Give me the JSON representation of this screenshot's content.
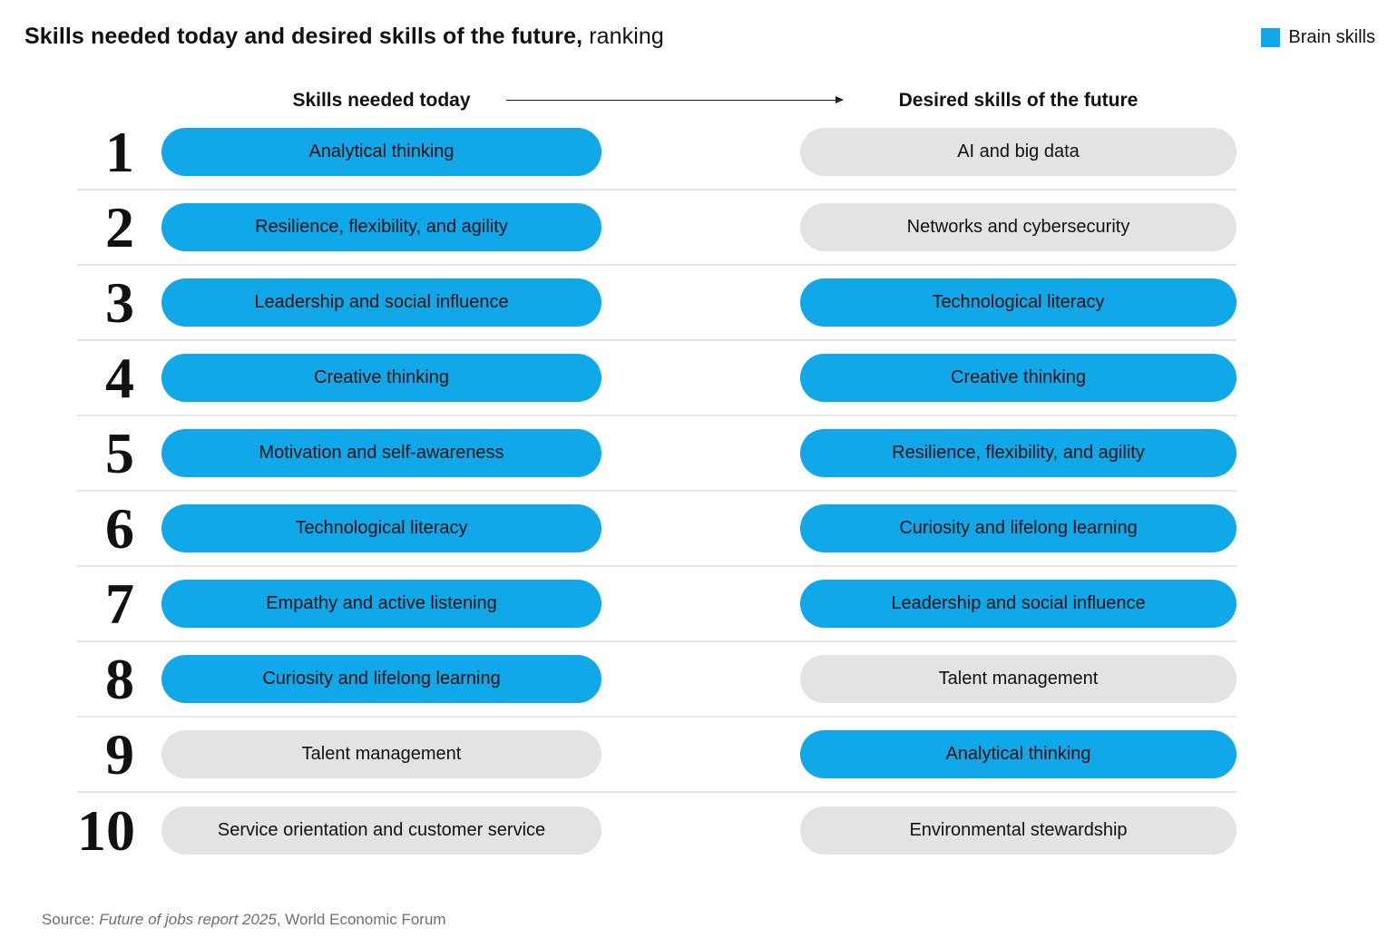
{
  "header": {
    "title_bold": "Skills needed today and desired skills of the future,",
    "title_regular": "ranking",
    "legend": {
      "label": "Brain skills",
      "color": "#10a8e9"
    }
  },
  "column_headers": {
    "left": "Skills needed today",
    "right": "Desired skills of the future"
  },
  "colors": {
    "brain_skill": "#10a8e9",
    "other_skill": "#e3e3e3",
    "divider": "#e6e6e6",
    "source_text": "#6f6f6f"
  },
  "chart_data": {
    "type": "table",
    "title": "Skills needed today and desired skills of the future, ranking",
    "columns": [
      "Rank",
      "Skills needed today",
      "Desired skills of the future"
    ],
    "legend": {
      "label": "Brain skills",
      "color": "#10a8e9",
      "position": "top-right"
    },
    "variant_meaning": {
      "brain": "Brain skill (blue)",
      "other": "Non-brain skill (gray)"
    },
    "rows": [
      {
        "rank": "1",
        "today": {
          "label": "Analytical thinking",
          "variant": "brain"
        },
        "future": {
          "label": "AI and big data",
          "variant": "other"
        }
      },
      {
        "rank": "2",
        "today": {
          "label": "Resilience, flexibility, and agility",
          "variant": "brain"
        },
        "future": {
          "label": "Networks and cybersecurity",
          "variant": "other"
        }
      },
      {
        "rank": "3",
        "today": {
          "label": "Leadership and social influence",
          "variant": "brain"
        },
        "future": {
          "label": "Technological literacy",
          "variant": "brain"
        }
      },
      {
        "rank": "4",
        "today": {
          "label": "Creative thinking",
          "variant": "brain"
        },
        "future": {
          "label": "Creative thinking",
          "variant": "brain"
        }
      },
      {
        "rank": "5",
        "today": {
          "label": "Motivation and self-awareness",
          "variant": "brain"
        },
        "future": {
          "label": "Resilience, flexibility, and agility",
          "variant": "brain"
        }
      },
      {
        "rank": "6",
        "today": {
          "label": "Technological literacy",
          "variant": "brain"
        },
        "future": {
          "label": "Curiosity and lifelong learning",
          "variant": "brain"
        }
      },
      {
        "rank": "7",
        "today": {
          "label": "Empathy and active listening",
          "variant": "brain"
        },
        "future": {
          "label": "Leadership and social influence",
          "variant": "brain"
        }
      },
      {
        "rank": "8",
        "today": {
          "label": "Curiosity and lifelong learning",
          "variant": "brain"
        },
        "future": {
          "label": "Talent management",
          "variant": "other"
        }
      },
      {
        "rank": "9",
        "today": {
          "label": "Talent management",
          "variant": "other"
        },
        "future": {
          "label": "Analytical thinking",
          "variant": "brain"
        }
      },
      {
        "rank": "10",
        "today": {
          "label": "Service orientation and customer service",
          "variant": "other"
        },
        "future": {
          "label": "Environmental stewardship",
          "variant": "other"
        }
      }
    ]
  },
  "source": {
    "prefix": "Source: ",
    "work": "Future of jobs report 2025",
    "suffix": ", World Economic Forum"
  }
}
